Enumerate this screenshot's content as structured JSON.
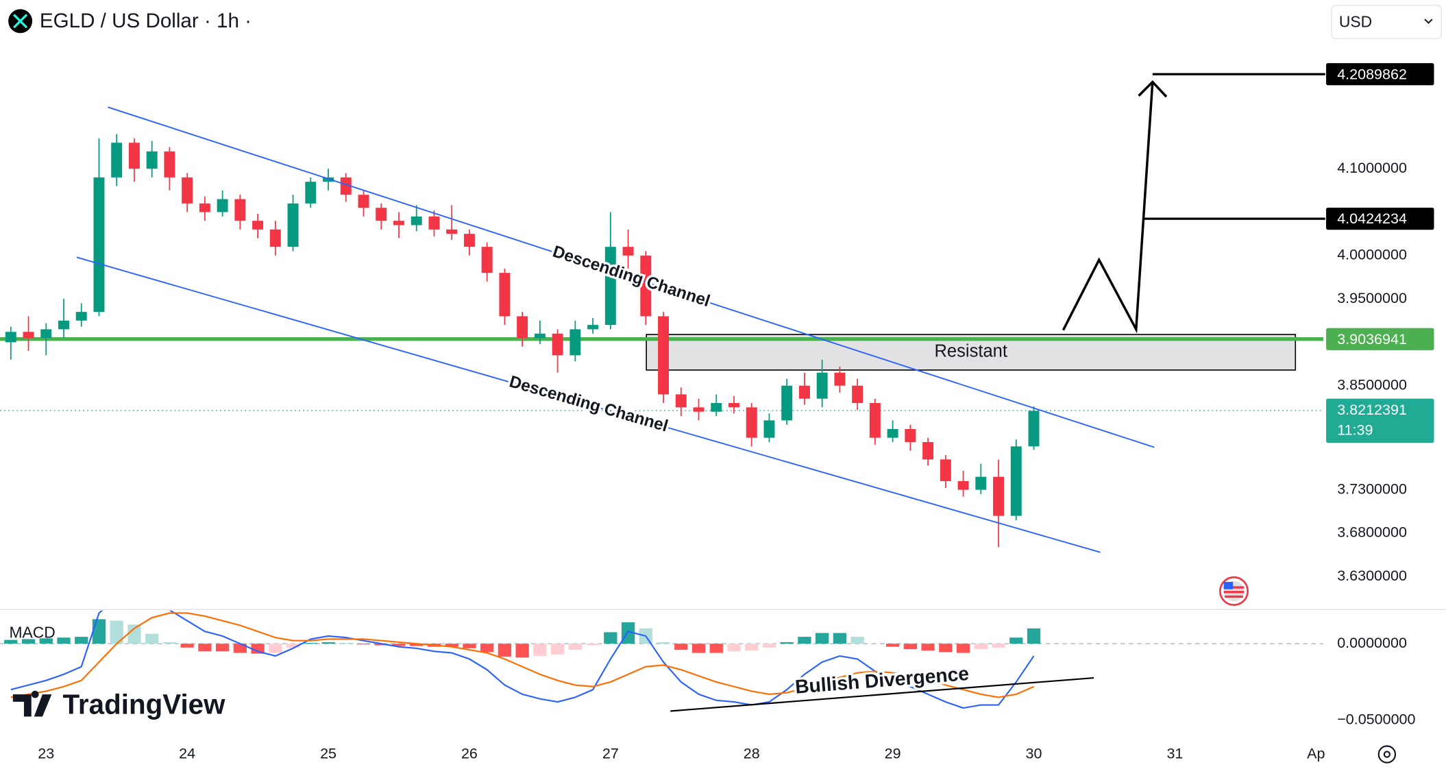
{
  "header": {
    "symbol": "EGLD / US Dollar · 1h ·",
    "currency": "USD"
  },
  "watermark": "TradingView",
  "chart_data": [
    {
      "type": "candlestick",
      "x": [
        -6,
        -3,
        0,
        3,
        6,
        9,
        12,
        15,
        18,
        21,
        24,
        27,
        30,
        33,
        36,
        39,
        42,
        45,
        48,
        51,
        54,
        57,
        60,
        63,
        66,
        69,
        72,
        75,
        78,
        81,
        84,
        87,
        90,
        93,
        96,
        99,
        102,
        105,
        108,
        111,
        114,
        117,
        120,
        123,
        126,
        129,
        132,
        135,
        138,
        141,
        144,
        147,
        150,
        153,
        156,
        159,
        162,
        165,
        168
      ],
      "open": [
        3.9,
        3.912,
        3.905,
        3.915,
        3.925,
        3.935,
        4.09,
        4.13,
        4.1,
        4.12,
        4.09,
        4.06,
        4.05,
        4.065,
        4.04,
        4.03,
        4.01,
        4.06,
        4.085,
        4.09,
        4.07,
        4.055,
        4.04,
        4.035,
        4.045,
        4.03,
        4.025,
        4.01,
        3.98,
        3.93,
        3.905,
        3.91,
        3.885,
        3.915,
        3.92,
        4.01,
        4.0,
        3.93,
        3.84,
        3.825,
        3.82,
        3.83,
        3.825,
        3.79,
        3.81,
        3.85,
        3.835,
        3.865,
        3.85,
        3.83,
        3.79,
        3.8,
        3.785,
        3.765,
        3.74,
        3.73,
        3.745,
        3.7,
        3.78
      ],
      "high": [
        3.918,
        3.93,
        3.922,
        3.95,
        3.945,
        4.135,
        4.14,
        4.135,
        4.132,
        4.125,
        4.095,
        4.068,
        4.075,
        4.07,
        4.048,
        4.04,
        4.07,
        4.09,
        4.1,
        4.095,
        4.075,
        4.06,
        4.05,
        4.058,
        4.052,
        4.058,
        4.03,
        4.015,
        3.985,
        3.935,
        3.925,
        3.915,
        3.925,
        3.928,
        4.05,
        4.03,
        4.005,
        3.935,
        3.848,
        3.835,
        3.84,
        3.838,
        3.83,
        3.818,
        3.858,
        3.865,
        3.88,
        3.872,
        3.858,
        3.835,
        3.81,
        3.805,
        3.79,
        3.77,
        3.752,
        3.76,
        3.765,
        3.788,
        3.826
      ],
      "low": [
        3.88,
        3.89,
        3.885,
        3.905,
        3.918,
        3.93,
        4.08,
        4.085,
        4.09,
        4.075,
        4.05,
        4.04,
        4.045,
        4.03,
        4.02,
        4.0,
        4.005,
        4.055,
        4.075,
        4.062,
        4.045,
        4.03,
        4.02,
        4.028,
        4.022,
        4.018,
        4.0,
        3.97,
        3.92,
        3.895,
        3.898,
        3.865,
        3.878,
        3.91,
        3.915,
        3.985,
        3.92,
        3.83,
        3.815,
        3.81,
        3.815,
        3.818,
        3.78,
        3.785,
        3.805,
        3.828,
        3.825,
        3.842,
        3.822,
        3.782,
        3.785,
        3.775,
        3.758,
        3.732,
        3.722,
        3.725,
        3.664,
        3.695,
        3.776
      ],
      "close": [
        3.912,
        3.905,
        3.915,
        3.925,
        3.935,
        4.09,
        4.13,
        4.1,
        4.12,
        4.09,
        4.06,
        4.05,
        4.065,
        4.04,
        4.03,
        4.01,
        4.06,
        4.085,
        4.09,
        4.07,
        4.055,
        4.04,
        4.035,
        4.045,
        4.03,
        4.025,
        4.01,
        3.98,
        3.93,
        3.905,
        3.91,
        3.885,
        3.915,
        3.92,
        4.01,
        4.0,
        3.93,
        3.84,
        3.825,
        3.82,
        3.83,
        3.825,
        3.79,
        3.81,
        3.85,
        3.835,
        3.865,
        3.85,
        3.83,
        3.79,
        3.8,
        3.785,
        3.765,
        3.74,
        3.73,
        3.745,
        3.7,
        3.78,
        3.821
      ],
      "up_color": "#089981",
      "down_color": "#f23645",
      "xlim": [
        -7.84,
        217.25
      ],
      "xticks": [
        {
          "value": 0,
          "label": "23"
        },
        {
          "value": 24,
          "label": "24"
        },
        {
          "value": 48,
          "label": "25"
        },
        {
          "value": 72,
          "label": "26"
        },
        {
          "value": 96,
          "label": "27"
        },
        {
          "value": 120,
          "label": "28"
        },
        {
          "value": 144,
          "label": "29"
        },
        {
          "value": 168,
          "label": "30"
        },
        {
          "value": 192,
          "label": "31"
        },
        {
          "value": 216,
          "label": "Ap"
        }
      ],
      "ylim": [
        3.592,
        4.251
      ],
      "yticks": [
        {
          "value": 4.1,
          "label": "4.1000000"
        },
        {
          "value": 4.0,
          "label": "4.0000000"
        },
        {
          "value": 3.95,
          "label": "3.9500000"
        },
        {
          "value": 3.85,
          "label": "3.8500000"
        },
        {
          "value": 3.73,
          "label": "3.7300000"
        },
        {
          "value": 3.68,
          "label": "3.6800000"
        },
        {
          "value": 3.63,
          "label": "3.6300000"
        }
      ],
      "levels": [
        4.2089862,
        4.0424234
      ],
      "level_color": "#000000",
      "support_line": {
        "value": 3.9036941,
        "color": "#4caf50"
      },
      "last_price": 3.8212391,
      "countdown": "11:39",
      "last_color": "#22ab94",
      "zone": {
        "label": "Resistant",
        "x": [
          102.1,
          212.5
        ],
        "y": [
          3.868,
          3.909
        ]
      },
      "channels": [
        {
          "label": "Descending Channel",
          "x": [
            10.5,
            188.5
          ],
          "y": [
            4.171,
            3.779
          ]
        },
        {
          "label": "Descending Channel",
          "x": [
            5.2,
            179.3
          ],
          "y": [
            3.998,
            3.658
          ]
        }
      ],
      "channel_color": "#2962ff",
      "projection": {
        "x": [
          173,
          179.1,
          185.4,
          188.2
        ],
        "y": [
          3.914,
          3.995,
          3.915,
          4.2
        ]
      }
    },
    {
      "type": "macd",
      "title": "MACD",
      "histogram": [
        0.0025,
        0.003,
        0.0035,
        0.004,
        0.0045,
        0.016,
        0.015,
        0.0125,
        0.0065,
        0.001,
        -0.0025,
        -0.005,
        -0.005,
        -0.006,
        -0.0065,
        -0.006,
        -0.0025,
        0.0005,
        0.001,
        0.0005,
        -0.0005,
        -0.001,
        -0.0015,
        -0.0015,
        -0.002,
        -0.002,
        -0.003,
        -0.0055,
        -0.0085,
        -0.009,
        -0.008,
        -0.007,
        -0.004,
        -0.001,
        0.0075,
        0.014,
        0.01,
        0.001,
        -0.004,
        -0.006,
        -0.006,
        -0.005,
        -0.0045,
        -0.0025,
        0.001,
        0.0045,
        0.007,
        0.007,
        0.0045,
        0,
        -0.002,
        -0.0035,
        -0.0045,
        -0.0055,
        -0.006,
        -0.0035,
        -0.0025,
        0.004,
        0.01
      ],
      "macd_line": {
        "color": "#2962ff",
        "values": [
          -0.03,
          -0.027,
          -0.024,
          -0.02,
          -0.015,
          0.02,
          0.03,
          0.035,
          0.03,
          0.022,
          0.015,
          0.008,
          0.005,
          0,
          -0.005,
          -0.008,
          -0.003,
          0.003,
          0.005,
          0.004,
          0.002,
          0,
          -0.002,
          -0.003,
          -0.005,
          -0.006,
          -0.01,
          -0.017,
          -0.027,
          -0.033,
          -0.036,
          -0.038,
          -0.035,
          -0.03,
          -0.01,
          0.008,
          0.005,
          -0.012,
          -0.025,
          -0.033,
          -0.037,
          -0.038,
          -0.04,
          -0.038,
          -0.03,
          -0.02,
          -0.012,
          -0.008,
          -0.01,
          -0.018,
          -0.023,
          -0.028,
          -0.033,
          -0.038,
          -0.042,
          -0.04,
          -0.04,
          -0.025,
          -0.008
        ]
      },
      "signal_line": {
        "color": "#ff6d00",
        "values": [
          -0.035,
          -0.033,
          -0.031,
          -0.028,
          -0.024,
          -0.012,
          0,
          0.01,
          0.017,
          0.02,
          0.02,
          0.018,
          0.015,
          0.012,
          0.008,
          0.004,
          0.002,
          0.002,
          0.003,
          0.003,
          0.003,
          0.002,
          0.001,
          0,
          -0.001,
          -0.002,
          -0.004,
          -0.006,
          -0.01,
          -0.015,
          -0.02,
          -0.024,
          -0.027,
          -0.028,
          -0.025,
          -0.02,
          -0.015,
          -0.014,
          -0.017,
          -0.021,
          -0.025,
          -0.028,
          -0.031,
          -0.033,
          -0.032,
          -0.029,
          -0.026,
          -0.022,
          -0.019,
          -0.018,
          -0.019,
          -0.021,
          -0.024,
          -0.027,
          -0.03,
          -0.033,
          -0.035,
          -0.033,
          -0.028
        ]
      },
      "hist_colors": [
        "#26a69a",
        "#b2dfdb",
        "#ff5252",
        "#ffcdd2"
      ],
      "ylim": [
        -0.062,
        0.0223
      ],
      "yticks": [
        {
          "value": 0,
          "label": "0.0000000"
        },
        {
          "value": -0.05,
          "label": "−0.0500000"
        }
      ],
      "divergence": {
        "label": "Bullish Divergence",
        "x": [
          106.2,
          178.2
        ],
        "y": [
          -0.044,
          -0.0223
        ]
      }
    }
  ]
}
